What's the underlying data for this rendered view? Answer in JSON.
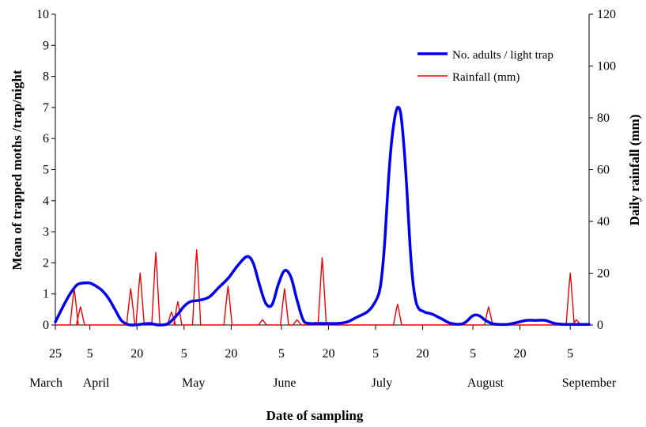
{
  "chart_data": {
    "type": "line",
    "xlabel": "Date of sampling",
    "ylabel_left": "Mean of trapped moths /trap/night",
    "ylabel_right": "Daily rainfall (mm)",
    "ylim_left": [
      0,
      10
    ],
    "ylim_right": [
      0,
      120
    ],
    "y_ticks_left": [
      "0",
      "1",
      "2",
      "3",
      "4",
      "5",
      "6",
      "7",
      "8",
      "9",
      "10"
    ],
    "y_ticks_right": [
      "0",
      "20",
      "40",
      "60",
      "80",
      "100",
      "120"
    ],
    "x_unit": "day index from 25 March",
    "xlim": [
      0,
      170
    ],
    "x_day_ticks": [
      {
        "label": "25",
        "day": 0
      },
      {
        "label": "5",
        "day": 11
      },
      {
        "label": "20",
        "day": 26
      },
      {
        "label": "5",
        "day": 41
      },
      {
        "label": "20",
        "day": 56
      },
      {
        "label": "5",
        "day": 72
      },
      {
        "label": "20",
        "day": 87
      },
      {
        "label": "5",
        "day": 102
      },
      {
        "label": "20",
        "day": 117
      },
      {
        "label": "5",
        "day": 133
      },
      {
        "label": "20",
        "day": 148
      },
      {
        "label": "5",
        "day": 164
      }
    ],
    "months": [
      {
        "label": "March",
        "day": -3
      },
      {
        "label": "April",
        "day": 13
      },
      {
        "label": "May",
        "day": 44
      },
      {
        "label": "June",
        "day": 73
      },
      {
        "label": "July",
        "day": 104
      },
      {
        "label": "August",
        "day": 137
      },
      {
        "label": "September",
        "day": 170
      }
    ],
    "legend_position": "top-right",
    "series": [
      {
        "name": "No. adults / light trap",
        "axis": "left",
        "color": "#0000ee",
        "x": [
          0,
          3,
          5,
          7,
          9,
          11,
          13,
          15,
          17,
          19,
          21,
          23,
          25,
          27,
          30,
          33,
          36,
          39,
          41,
          43,
          46,
          49,
          52,
          55,
          58,
          61,
          63,
          65,
          67,
          69,
          71,
          73,
          75,
          77,
          79,
          81,
          83,
          85,
          87,
          90,
          93,
          96,
          99,
          101,
          103,
          104,
          105,
          106,
          107,
          108,
          109,
          110,
          111,
          112,
          113,
          114,
          115,
          116,
          117,
          118,
          120,
          123,
          126,
          130,
          133,
          135,
          137,
          139,
          141,
          144,
          147,
          150,
          153,
          156,
          159,
          162,
          165,
          170
        ],
        "values": [
          0.1,
          0.7,
          1.05,
          1.3,
          1.35,
          1.35,
          1.25,
          1.1,
          0.85,
          0.5,
          0.15,
          0.02,
          0.0,
          0.02,
          0.05,
          0.0,
          0.05,
          0.35,
          0.6,
          0.75,
          0.8,
          0.9,
          1.2,
          1.5,
          1.9,
          2.2,
          2.0,
          1.3,
          0.7,
          0.65,
          1.3,
          1.75,
          1.55,
          0.8,
          0.15,
          0.05,
          0.05,
          0.05,
          0.05,
          0.05,
          0.1,
          0.25,
          0.4,
          0.6,
          1.0,
          1.6,
          2.8,
          4.5,
          5.8,
          6.6,
          7.0,
          6.8,
          5.8,
          4.3,
          2.5,
          1.3,
          0.7,
          0.5,
          0.45,
          0.4,
          0.35,
          0.2,
          0.05,
          0.05,
          0.3,
          0.3,
          0.15,
          0.05,
          0.02,
          0.02,
          0.08,
          0.15,
          0.15,
          0.15,
          0.05,
          0.02,
          0.02,
          0.02
        ]
      },
      {
        "name": "Rainfall (mm)",
        "axis": "right",
        "color": "#ee0000",
        "events": [
          {
            "x": 6,
            "v": 14
          },
          {
            "x": 8,
            "v": 7
          },
          {
            "x": 24,
            "v": 14
          },
          {
            "x": 27,
            "v": 20
          },
          {
            "x": 32,
            "v": 28
          },
          {
            "x": 37,
            "v": 5
          },
          {
            "x": 39,
            "v": 9
          },
          {
            "x": 45,
            "v": 29
          },
          {
            "x": 55,
            "v": 15
          },
          {
            "x": 66,
            "v": 2
          },
          {
            "x": 73,
            "v": 14
          },
          {
            "x": 77,
            "v": 2
          },
          {
            "x": 85,
            "v": 26
          },
          {
            "x": 109,
            "v": 8
          },
          {
            "x": 138,
            "v": 7
          },
          {
            "x": 164,
            "v": 20
          },
          {
            "x": 166,
            "v": 2
          }
        ]
      }
    ]
  }
}
